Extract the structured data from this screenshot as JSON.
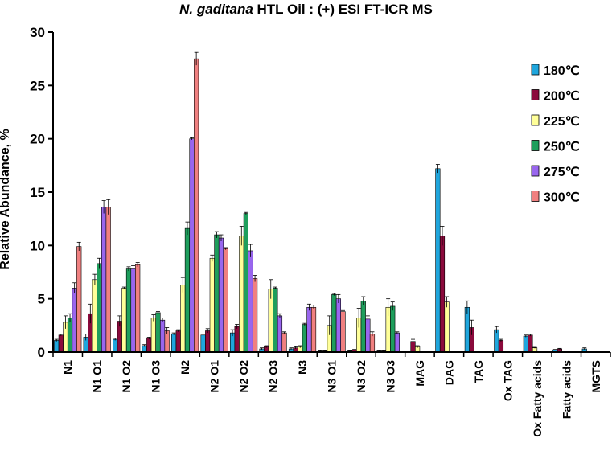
{
  "chart_data": {
    "type": "bar",
    "title_italic": "N. gaditana",
    "title_rest": " HTL Oil : (+) ESI FT-ICR MS",
    "xlabel": "",
    "ylabel": "Relative Abundance, %",
    "ylim": [
      0,
      30
    ],
    "yticks": [
      "0",
      "5",
      "10",
      "15",
      "20",
      "25",
      "30"
    ],
    "grid": false,
    "legend_position": "right",
    "error_bars": true,
    "categories": [
      "N1",
      "N1 O1",
      "N1 O2",
      "N1 O3",
      "N2",
      "N2 O1",
      "N2 O2",
      "N2 O3",
      "N3",
      "N3 O1",
      "N3 O2",
      "N3 O3",
      "MAG",
      "DAG",
      "TAG",
      "Ox TAG",
      "Ox Fatty acids",
      "Fatty acids",
      "MGTS"
    ],
    "series": [
      {
        "name": "180℃",
        "color": "#1fa6dd",
        "values": [
          1.1,
          1.4,
          1.2,
          0.6,
          1.7,
          1.6,
          1.8,
          0.3,
          0.3,
          0.1,
          0.1,
          0.1,
          0.0,
          17.2,
          4.2,
          2.1,
          1.5,
          0.2,
          0.3
        ]
      },
      {
        "name": "200℃",
        "color": "#8b0a3c",
        "values": [
          1.6,
          3.6,
          2.9,
          1.3,
          2.0,
          2.0,
          2.4,
          0.5,
          0.4,
          0.1,
          0.2,
          0.1,
          1.0,
          10.9,
          2.3,
          1.1,
          1.6,
          0.3,
          0.0
        ]
      },
      {
        "name": "225℃",
        "color": "#ffff99",
        "values": [
          2.8,
          6.8,
          6.0,
          3.2,
          6.3,
          8.8,
          10.9,
          5.9,
          0.5,
          2.5,
          3.2,
          4.2,
          0.5,
          4.7,
          0.0,
          0.0,
          0.4,
          0.0,
          0.0
        ]
      },
      {
        "name": "250℃",
        "color": "#1e9e5c",
        "values": [
          3.2,
          8.3,
          7.8,
          3.7,
          11.6,
          11.0,
          13.0,
          6.0,
          2.6,
          5.4,
          4.8,
          4.3,
          0.0,
          0.0,
          0.0,
          0.0,
          0.0,
          0.0,
          0.0
        ]
      },
      {
        "name": "275℃",
        "color": "#9966ee",
        "values": [
          6.0,
          13.6,
          7.8,
          3.0,
          20.0,
          10.7,
          9.5,
          3.4,
          4.2,
          5.0,
          3.1,
          1.8,
          0.0,
          0.0,
          0.0,
          0.0,
          0.0,
          0.0,
          0.0
        ]
      },
      {
        "name": "300℃",
        "color": "#f08080",
        "values": [
          9.9,
          13.6,
          8.2,
          2.0,
          27.5,
          9.7,
          6.9,
          1.8,
          4.2,
          3.8,
          1.7,
          0.0,
          0.0,
          0.0,
          0.0,
          0.0,
          0.0,
          0.0,
          0.0
        ]
      }
    ],
    "errors": [
      [
        0.1,
        0.3,
        0.1,
        0.1,
        0.1,
        0.1,
        0.3,
        0.1,
        0.1,
        0.05,
        0.05,
        0.05,
        0.0,
        0.4,
        0.6,
        0.3,
        0.1,
        0.05,
        0.1
      ],
      [
        0.1,
        0.9,
        0.5,
        0.1,
        0.1,
        0.2,
        0.2,
        0.1,
        0.1,
        0.05,
        0.05,
        0.05,
        0.2,
        0.9,
        0.7,
        0.1,
        0.1,
        0.05,
        0.0
      ],
      [
        0.6,
        0.5,
        0.1,
        0.3,
        0.7,
        0.3,
        0.9,
        0.9,
        0.1,
        0.9,
        0.9,
        0.8,
        0.1,
        0.5,
        0.0,
        0.0,
        0.05,
        0.0,
        0.0
      ],
      [
        0.4,
        0.5,
        0.2,
        0.1,
        0.6,
        0.3,
        0.1,
        0.1,
        0.1,
        0.1,
        0.4,
        0.4,
        0.0,
        0.0,
        0.0,
        0.0,
        0.0,
        0.0,
        0.0
      ],
      [
        0.5,
        0.6,
        0.3,
        0.2,
        0.1,
        0.3,
        0.6,
        0.2,
        0.3,
        0.4,
        0.3,
        0.1,
        0.0,
        0.0,
        0.0,
        0.0,
        0.0,
        0.0,
        0.0
      ],
      [
        0.4,
        0.7,
        0.2,
        0.3,
        0.6,
        0.1,
        0.3,
        0.1,
        0.2,
        0.1,
        0.2,
        0.0,
        0.0,
        0.0,
        0.0,
        0.0,
        0.0,
        0.0,
        0.0
      ]
    ]
  }
}
